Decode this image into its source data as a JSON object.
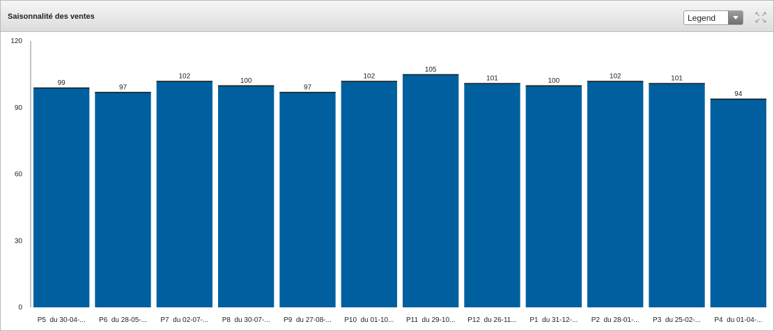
{
  "header": {
    "title": "Saisonnalité des ventes",
    "legend_label": "Legend"
  },
  "colors": {
    "bar": "#00609f",
    "bar_outline": "#1a1a1a",
    "axis": "#888888"
  },
  "chart_data": {
    "type": "bar",
    "categories": [
      "P5  du 30-04-...",
      "P6  du 28-05-...",
      "P7  du 02-07-...",
      "P8  du 30-07-...",
      "P9  du 27-08-...",
      "P10  du 01-10...",
      "P11  du 29-10...",
      "P12  du 26-11...",
      "P1  du 31-12-...",
      "P2  du 28-01-...",
      "P3  du 25-02-...",
      "P4  du 01-04-..."
    ],
    "values": [
      99,
      97,
      102,
      100,
      97,
      102,
      105,
      101,
      100,
      102,
      101,
      94
    ],
    "ylim": [
      0,
      120
    ],
    "yticks": [
      "0",
      "30",
      "60",
      "90",
      "120"
    ],
    "grid": false,
    "xlabel": "",
    "ylabel": ""
  }
}
